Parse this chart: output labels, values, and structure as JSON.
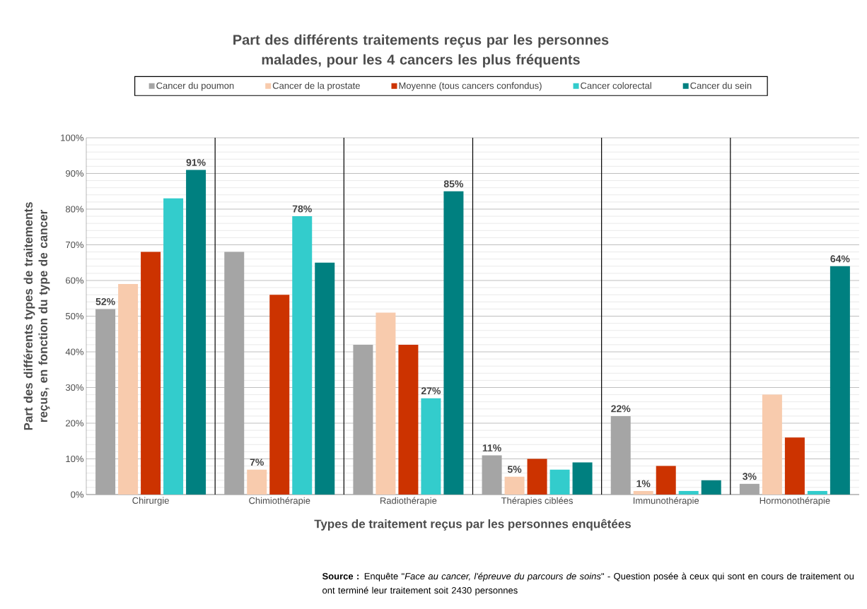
{
  "chart_data": {
    "type": "bar",
    "title": "Part des différents traitements reçus par les personnes malades, pour les 4 cancers les plus fréquents",
    "xlabel": "Types de traitement reçus par les personnes enquêtées",
    "ylabel": "Part des différents types de traitements reçus, en fonction du type de cancer",
    "categories": [
      "Chirurgie",
      "Chimiothérapie",
      "Radiothérapie",
      "Thérapies ciblées",
      "Immunothérapie",
      "Hormonothérapie"
    ],
    "series": [
      {
        "name": "Cancer du poumon",
        "color": "#a5a5a5",
        "values": [
          52,
          68,
          42,
          11,
          22,
          3
        ],
        "value_labels": [
          "52%",
          null,
          null,
          "11%",
          "22%",
          "3%"
        ]
      },
      {
        "name": "Cancer de la prostate",
        "color": "#f8cbad",
        "values": [
          59,
          7,
          51,
          5,
          1,
          28
        ],
        "value_labels": [
          null,
          "7%",
          null,
          "5%",
          "1%",
          null
        ]
      },
      {
        "name": "Moyenne (tous cancers confondus)",
        "color": "#cc3300",
        "values": [
          68,
          56,
          42,
          10,
          8,
          16
        ]
      },
      {
        "name": "Cancer colorectal",
        "color": "#33cccc",
        "values": [
          83,
          78,
          27,
          7,
          1,
          1
        ],
        "value_labels": [
          null,
          "78%",
          "27%",
          null,
          null,
          null
        ]
      },
      {
        "name": "Cancer du sein",
        "color": "#008080",
        "values": [
          91,
          65,
          85,
          9,
          4,
          64
        ],
        "value_labels": [
          "91%",
          null,
          "85%",
          null,
          null,
          "64%"
        ]
      }
    ],
    "ylim": [
      0,
      100
    ],
    "yticks": [
      {
        "value": 0,
        "label": "0%"
      },
      {
        "value": 10,
        "label": "10%"
      },
      {
        "value": 20,
        "label": "20%"
      },
      {
        "value": 30,
        "label": "30%"
      },
      {
        "value": 40,
        "label": "40%"
      },
      {
        "value": 50,
        "label": "50%"
      },
      {
        "value": 60,
        "label": "60%"
      },
      {
        "value": 70,
        "label": "70%"
      },
      {
        "value": 80,
        "label": "80%"
      },
      {
        "value": 90,
        "label": "90%"
      },
      {
        "value": 100,
        "label": "100%"
      }
    ],
    "grid": "y",
    "legend": "top",
    "annotations": [
      "**Source :** Enquête \"*Face au cancer, l'épreuve du parcours de soins*\" - Question posée à ceux qui sont en cours de traitement ou ont terminé leur traitement soit 2430 personnes"
    ]
  }
}
